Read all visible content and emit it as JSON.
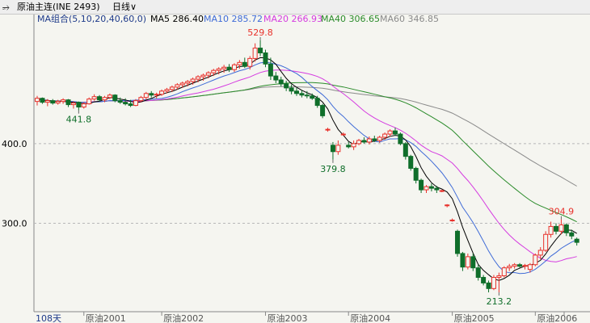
{
  "window": {
    "menu_icon": "chain-link-icon",
    "title": "原油主连(INE 2493)",
    "period_label": "日线",
    "period_icon": "chevron-down-icon"
  },
  "colors": {
    "background": "#f5f5f0",
    "up": "#e8312b",
    "down": "#0f6e2a",
    "ma5": "#000000",
    "ma10": "#3f6bd7",
    "ma20": "#d53be0",
    "ma40": "#2a8b2a",
    "ma60": "#8a8a8a",
    "grid": "#b8b8b8"
  },
  "legend": {
    "group": "MA组合(5,10,20,40,60,0)",
    "items": [
      {
        "name": "MA5",
        "value": "286.40",
        "color": "#000000"
      },
      {
        "name": "MA10",
        "value": "285.72",
        "color": "#3f6bd7"
      },
      {
        "name": "MA20",
        "value": "266.93",
        "color": "#d53be0"
      },
      {
        "name": "MA40",
        "value": "306.65",
        "color": "#2a8b2a"
      },
      {
        "name": "MA60",
        "value": "346.85",
        "color": "#8a8a8a"
      }
    ]
  },
  "chart_data": {
    "type": "candlestick",
    "y_ticks": [
      "400.0",
      "300.0"
    ],
    "y_tick_values": [
      400,
      300
    ],
    "ylim": [
      195,
      550
    ],
    "grid": "dashed horizontal at y ticks",
    "x_bar_count_label": "108天",
    "x_ticks": [
      {
        "label": "原油2001",
        "bar": 9
      },
      {
        "label": "原油2002",
        "bar": 24
      },
      {
        "label": "原油2003",
        "bar": 44
      },
      {
        "label": "原油2004",
        "bar": 60
      },
      {
        "label": "原油2005",
        "bar": 80
      },
      {
        "label": "原油2006",
        "bar": 96
      }
    ],
    "annotations": [
      {
        "text": "529.8",
        "bar": 43,
        "price": 529.8,
        "kind": "high",
        "color": "#e8312b"
      },
      {
        "text": "441.8",
        "bar": 8,
        "price": 441.8,
        "kind": "low",
        "color": "#0f6e2a"
      },
      {
        "text": "379.8",
        "bar": 57,
        "price": 379.8,
        "kind": "low",
        "color": "#0f6e2a"
      },
      {
        "text": "213.2",
        "bar": 89,
        "price": 213.2,
        "kind": "low",
        "color": "#0f6e2a"
      },
      {
        "text": "304.9",
        "bar": 101,
        "price": 304.9,
        "kind": "high",
        "color": "#e8312b"
      }
    ],
    "candles": [
      [
        0,
        453,
        460,
        448,
        457
      ],
      [
        1,
        457,
        458,
        450,
        452
      ],
      [
        2,
        452,
        456,
        447,
        454
      ],
      [
        3,
        454,
        456,
        449,
        451
      ],
      [
        4,
        451,
        455,
        449,
        453
      ],
      [
        5,
        453,
        457,
        450,
        455
      ],
      [
        6,
        455,
        456,
        446,
        449
      ],
      [
        7,
        449,
        453,
        444,
        451
      ],
      [
        8,
        452,
        453,
        441.8,
        446
      ],
      [
        9,
        446,
        452,
        444,
        450
      ],
      [
        10,
        450,
        458,
        449,
        456
      ],
      [
        11,
        456,
        462,
        454,
        459
      ],
      [
        12,
        459,
        461,
        453,
        455
      ],
      [
        13,
        455,
        460,
        452,
        458
      ],
      [
        14,
        458,
        463,
        456,
        461
      ],
      [
        15,
        461,
        462,
        452,
        454
      ],
      [
        16,
        454,
        458,
        450,
        452
      ],
      [
        17,
        452,
        457,
        448,
        450
      ],
      [
        18,
        450,
        455,
        446,
        448
      ],
      [
        19,
        448,
        456,
        447,
        454
      ],
      [
        20,
        454,
        460,
        452,
        458
      ],
      [
        21,
        458,
        465,
        455,
        463
      ],
      [
        22,
        463,
        466,
        458,
        461
      ],
      [
        23,
        461,
        464,
        457,
        462
      ],
      [
        24,
        462,
        468,
        460,
        466
      ],
      [
        25,
        466,
        470,
        463,
        468
      ],
      [
        26,
        468,
        473,
        465,
        471
      ],
      [
        27,
        471,
        476,
        468,
        474
      ],
      [
        28,
        474,
        478,
        470,
        476
      ],
      [
        29,
        476,
        480,
        472,
        478
      ],
      [
        30,
        478,
        483,
        474,
        481
      ],
      [
        31,
        481,
        486,
        477,
        484
      ],
      [
        32,
        484,
        488,
        479,
        486
      ],
      [
        33,
        486,
        491,
        482,
        489
      ],
      [
        34,
        489,
        494,
        485,
        492
      ],
      [
        35,
        492,
        496,
        487,
        494
      ],
      [
        36,
        494,
        499,
        489,
        496
      ],
      [
        37,
        496,
        500,
        490,
        493
      ],
      [
        38,
        493,
        501,
        490,
        499
      ],
      [
        39,
        499,
        505,
        494,
        502
      ],
      [
        40,
        502,
        508,
        495,
        497
      ],
      [
        41,
        497,
        510,
        493,
        507
      ],
      [
        42,
        507,
        526,
        503,
        520
      ],
      [
        43,
        520,
        529.8,
        510,
        514
      ],
      [
        44,
        514,
        518,
        496,
        500
      ],
      [
        45,
        500,
        508,
        480,
        485
      ],
      [
        46,
        485,
        490,
        476,
        480
      ],
      [
        47,
        480,
        484,
        472,
        475
      ],
      [
        48,
        475,
        479,
        466,
        470
      ],
      [
        49,
        470,
        474,
        462,
        466
      ],
      [
        50,
        466,
        470,
        460,
        463
      ],
      [
        51,
        463,
        467,
        458,
        461
      ],
      [
        52,
        461,
        466,
        457,
        460
      ],
      [
        53,
        460,
        463,
        455,
        457
      ],
      [
        54,
        457,
        460,
        445,
        448
      ],
      [
        55,
        448,
        450,
        432,
        435
      ],
      [
        56,
        418,
        420,
        415,
        418
      ],
      [
        57,
        398,
        402,
        379.8,
        390
      ],
      [
        58,
        390,
        404,
        386,
        398
      ],
      [
        59,
        412,
        414,
        410,
        412
      ],
      [
        60,
        398,
        402,
        394,
        396
      ],
      [
        61,
        396,
        404,
        392,
        400
      ],
      [
        62,
        400,
        406,
        398,
        404
      ],
      [
        63,
        404,
        408,
        400,
        402
      ],
      [
        64,
        402,
        409,
        399,
        406
      ],
      [
        65,
        406,
        410,
        402,
        404
      ],
      [
        66,
        404,
        410,
        401,
        408
      ],
      [
        67,
        408,
        414,
        405,
        412
      ],
      [
        68,
        412,
        418,
        409,
        416
      ],
      [
        69,
        416,
        420,
        410,
        412
      ],
      [
        70,
        412,
        414,
        398,
        400
      ],
      [
        71,
        400,
        402,
        380,
        384
      ],
      [
        72,
        384,
        386,
        366,
        369
      ],
      [
        73,
        369,
        371,
        350,
        354
      ],
      [
        74,
        354,
        356,
        338,
        342
      ],
      [
        75,
        342,
        348,
        338,
        346
      ],
      [
        76,
        346,
        350,
        340,
        344
      ],
      [
        77,
        344,
        347,
        338,
        342
      ],
      [
        78,
        341,
        342,
        339,
        341
      ],
      [
        79,
        323,
        324,
        320,
        323
      ],
      [
        80,
        304,
        306,
        302,
        304
      ],
      [
        81,
        290,
        292,
        258,
        262
      ],
      [
        82,
        262,
        264,
        240,
        245
      ],
      [
        83,
        245,
        262,
        242,
        258
      ],
      [
        84,
        258,
        262,
        240,
        244
      ],
      [
        85,
        244,
        248,
        228,
        232
      ],
      [
        86,
        232,
        235,
        222,
        225
      ],
      [
        87,
        225,
        228,
        213.2,
        218
      ],
      [
        88,
        218,
        235,
        216,
        232
      ],
      [
        89,
        232,
        238,
        213.2,
        234
      ],
      [
        90,
        234,
        246,
        232,
        244
      ],
      [
        91,
        244,
        249,
        240,
        246
      ],
      [
        92,
        246,
        250,
        243,
        248
      ],
      [
        93,
        248,
        250,
        244,
        246
      ],
      [
        94,
        246,
        249,
        242,
        247
      ],
      [
        95,
        242,
        250,
        238,
        248
      ],
      [
        96,
        248,
        262,
        246,
        260
      ],
      [
        97,
        260,
        270,
        255,
        266
      ],
      [
        98,
        266,
        290,
        264,
        286
      ],
      [
        99,
        286,
        302,
        282,
        296
      ],
      [
        100,
        296,
        300,
        286,
        290
      ],
      [
        101,
        290,
        304.9,
        286,
        298
      ],
      [
        102,
        298,
        300,
        284,
        288
      ],
      [
        103,
        288,
        292,
        280,
        284
      ],
      [
        104,
        280,
        282,
        272,
        276
      ]
    ]
  }
}
